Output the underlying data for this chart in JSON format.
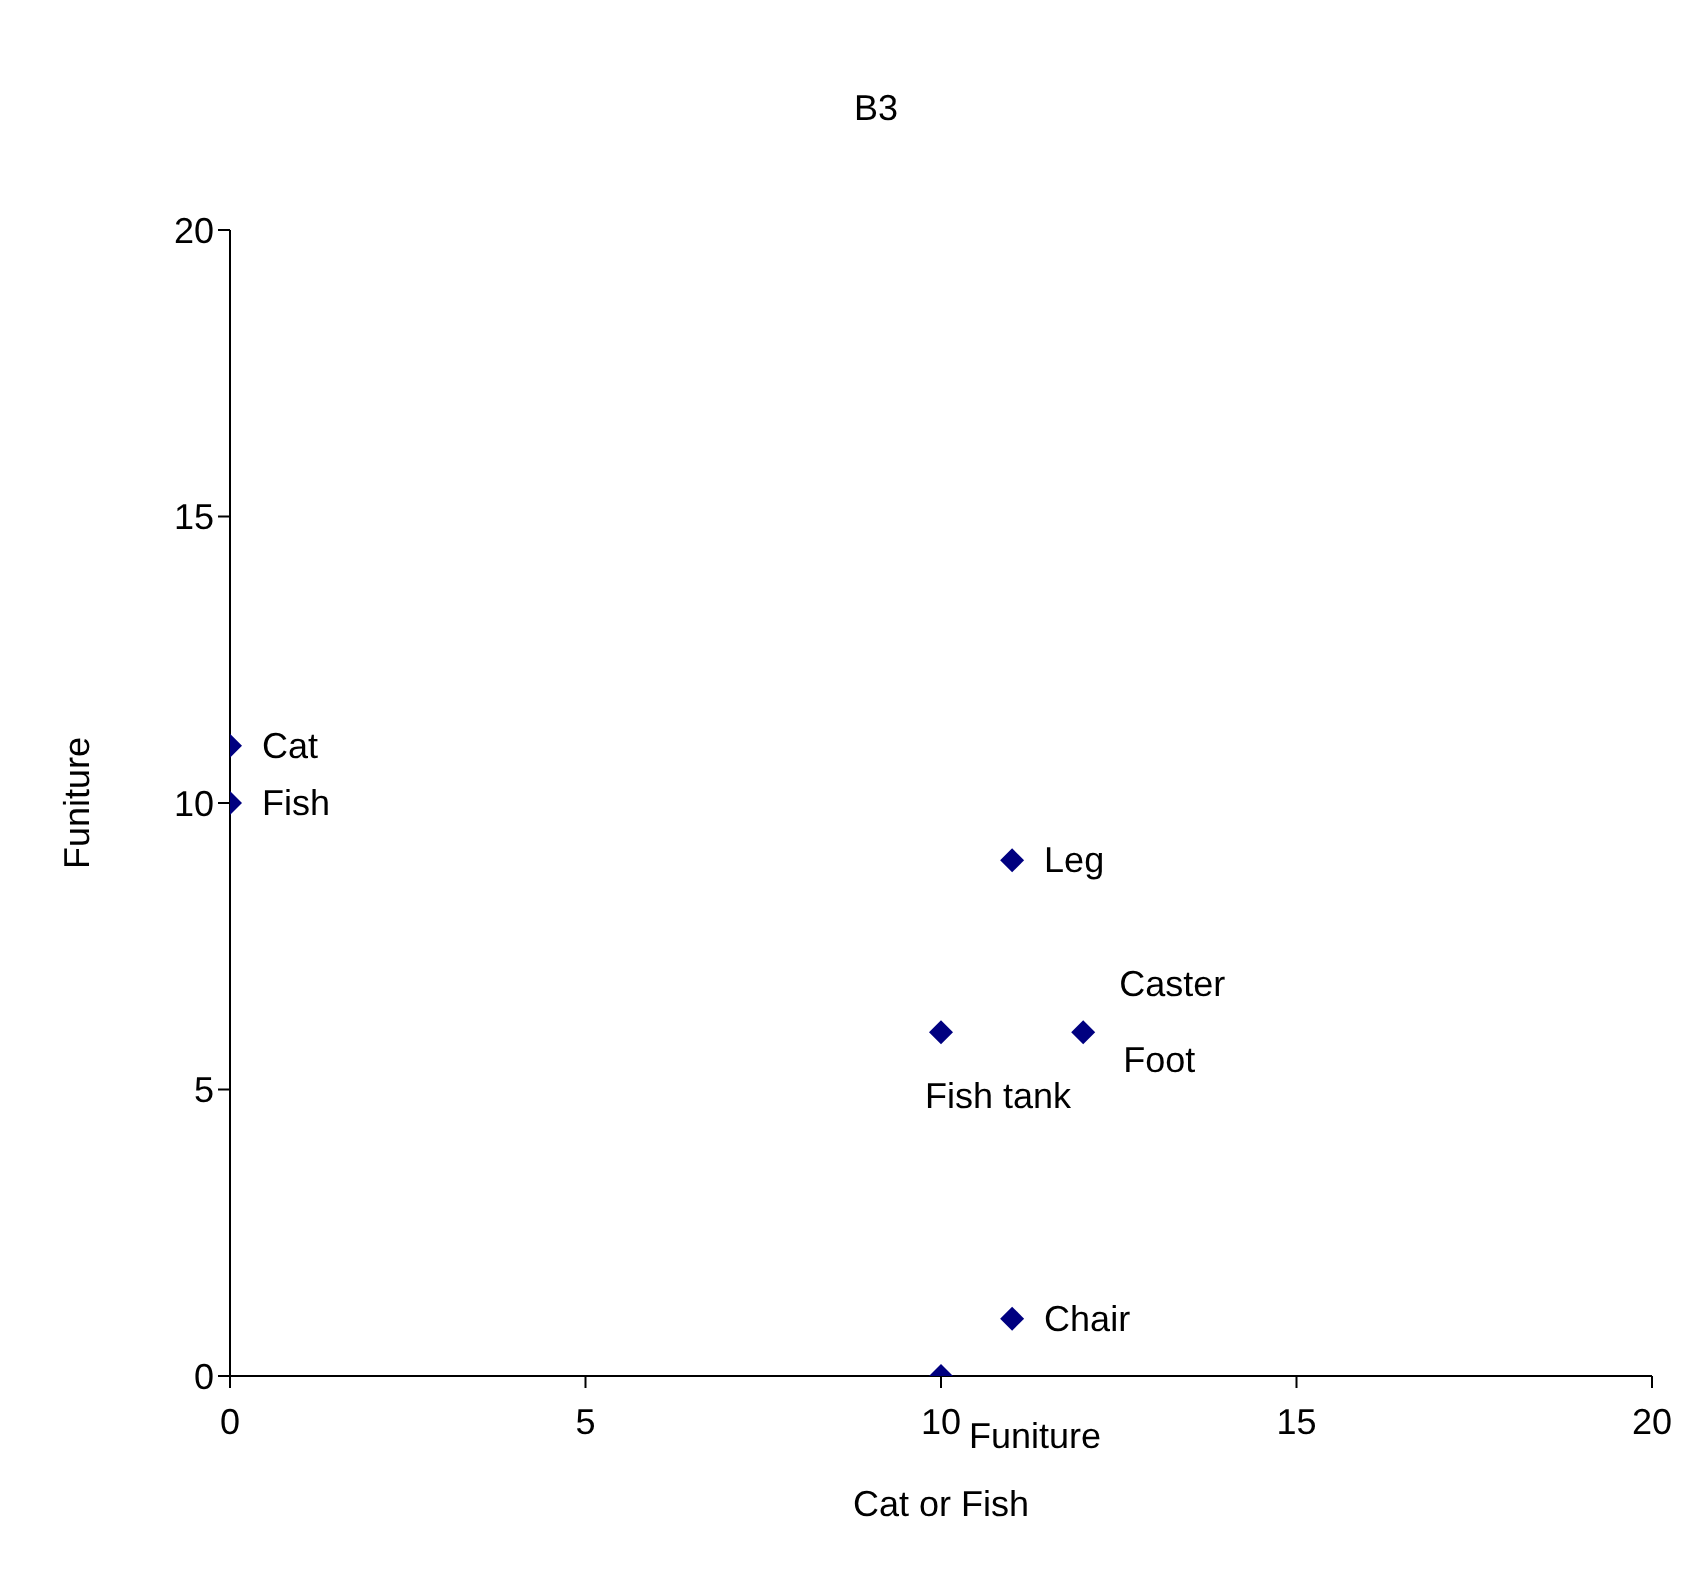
{
  "chart_data": {
    "type": "scatter",
    "title": "B3",
    "xlabel": "Cat or Fish",
    "ylabel": "Funiture",
    "x": [
      0,
      0,
      11,
      10,
      12,
      11,
      10
    ],
    "series": [
      {
        "color": "#000080",
        "values": [
          11,
          10,
          9,
          6,
          6,
          1,
          0
        ]
      }
    ],
    "xlim": [
      0,
      20
    ],
    "xticks": [
      0,
      5,
      10,
      15,
      20
    ],
    "ylim": [
      0,
      20
    ],
    "yticks": [
      0,
      5,
      10,
      15,
      20
    ],
    "marker": "diamond",
    "grid": false,
    "legend": false,
    "annotations": [
      {
        "text": "Cat",
        "x": 0,
        "y": 11
      },
      {
        "text": "Fish",
        "x": 0,
        "y": 10
      },
      {
        "text": "Leg",
        "x": 11,
        "y": 9
      },
      {
        "text": "Fish tank",
        "x": 10,
        "y": 6
      },
      {
        "text": "Caster",
        "x": 12,
        "y": 6
      },
      {
        "text": "Foot",
        "x": 12,
        "y": 6
      },
      {
        "text": "Chair",
        "x": 11,
        "y": 1
      },
      {
        "text": "Funiture",
        "x": 10,
        "y": 0
      }
    ]
  }
}
